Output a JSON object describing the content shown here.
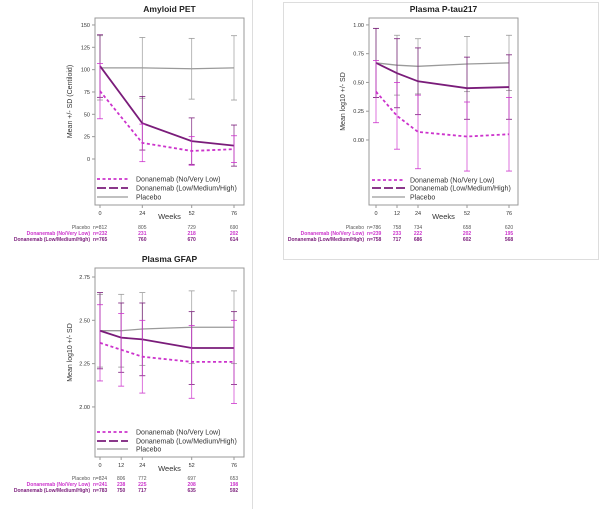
{
  "colors": {
    "placebo": "#9a9a9a",
    "no_very_low": "#cc33cc",
    "low_medium_high": "#7a1c7a",
    "frame": "#999999",
    "text": "#333333"
  },
  "chart_data": [
    {
      "type": "line",
      "title": "Amyloid PET",
      "xlabel": "Weeks",
      "ylabel": "Mean +/- SD (Centiloid)",
      "x": [
        0,
        24,
        52,
        76
      ],
      "xticks": [
        "0",
        "24",
        "52",
        "76"
      ],
      "yticks": [
        0,
        25,
        50,
        75,
        100,
        125,
        150
      ],
      "ytick_labels": [
        "0",
        "25",
        "50",
        "75",
        "100",
        "125",
        "150"
      ],
      "ylim": [
        -51.5,
        157.8
      ],
      "legend_position": "bottom-inside",
      "series": [
        {
          "name": "Donanemab (No/Very Low)",
          "key": "no_very_low",
          "style": "dotted",
          "values": [
            76,
            18,
            9,
            11
          ],
          "sd": [
            31,
            21,
            16,
            15
          ]
        },
        {
          "name": "Donanemab (Low/Medium/High)",
          "key": "low_medium_high",
          "style": "solid",
          "values": [
            104,
            40,
            20,
            15
          ],
          "sd": [
            35,
            30,
            26,
            23
          ]
        },
        {
          "name": "Placebo",
          "key": "placebo",
          "style": "solid",
          "values": [
            102,
            102,
            101,
            102
          ],
          "sd": [
            36,
            34,
            34,
            36
          ]
        }
      ],
      "n_at_risk": [
        {
          "label": "Placebo",
          "key": "placebo",
          "values": [
            "n=812",
            "805",
            "729",
            "690"
          ]
        },
        {
          "label": "Donanemab (No/Very Low)",
          "key": "no_very_low",
          "values": [
            "n=232",
            "231",
            "218",
            "202"
          ]
        },
        {
          "label": "Donanemab (Low/Medium/High)",
          "key": "low_medium_high",
          "values": [
            "n=765",
            "760",
            "670",
            "614"
          ]
        }
      ]
    },
    {
      "type": "line",
      "title": "Plasma P-tau217",
      "xlabel": "Weeks",
      "ylabel": "Mean log10 +/- SD",
      "x": [
        0,
        12,
        24,
        52,
        76
      ],
      "xticks": [
        "0",
        "12",
        "24",
        "52",
        "76"
      ],
      "yticks": [
        0,
        0.25,
        0.5,
        0.75,
        1.0
      ],
      "ytick_labels": [
        "0.00",
        "0.25",
        "0.50",
        "0.75",
        "1.00"
      ],
      "ylim": [
        -0.565,
        1.06
      ],
      "legend_position": "bottom-inside",
      "series": [
        {
          "name": "Donanemab (No/Very Low)",
          "key": "no_very_low",
          "style": "dotted",
          "values": [
            0.42,
            0.21,
            0.07,
            0.03,
            0.05
          ],
          "sd": [
            0.27,
            0.29,
            0.32,
            0.3,
            0.32
          ]
        },
        {
          "name": "Donanemab (Low/Medium/High)",
          "key": "low_medium_high",
          "style": "solid",
          "values": [
            0.67,
            0.58,
            0.51,
            0.45,
            0.46
          ],
          "sd": [
            0.3,
            0.3,
            0.29,
            0.27,
            0.28
          ]
        },
        {
          "name": "Placebo",
          "key": "placebo",
          "style": "solid",
          "values": [
            0.67,
            0.65,
            0.64,
            0.66,
            0.67
          ],
          "sd": [
            0.3,
            0.26,
            0.24,
            0.24,
            0.24
          ]
        }
      ],
      "n_at_risk": [
        {
          "label": "Placebo",
          "key": "placebo",
          "values": [
            "n=786",
            "758",
            "734",
            "658",
            "620"
          ]
        },
        {
          "label": "Donanemab (No/Very Low)",
          "key": "no_very_low",
          "values": [
            "n=239",
            "233",
            "222",
            "202",
            "195"
          ]
        },
        {
          "label": "Donanemab (Low/Medium/High)",
          "key": "low_medium_high",
          "values": [
            "n=758",
            "717",
            "686",
            "602",
            "568"
          ]
        }
      ]
    },
    {
      "type": "line",
      "title": "Plasma GFAP",
      "xlabel": "Weeks",
      "ylabel": "Mean log10 +/- SD",
      "x": [
        0,
        12,
        24,
        52,
        76
      ],
      "xticks": [
        "0",
        "12",
        "24",
        "52",
        "76"
      ],
      "yticks": [
        2.0,
        2.25,
        2.5,
        2.75
      ],
      "ytick_labels": [
        "2.00",
        "2.25",
        "2.50",
        "2.75"
      ],
      "ylim": [
        1.711,
        2.802
      ],
      "legend_position": "bottom-inside",
      "series": [
        {
          "name": "Donanemab (No/Very Low)",
          "key": "no_very_low",
          "style": "dotted",
          "values": [
            2.37,
            2.33,
            2.29,
            2.26,
            2.26
          ],
          "sd": [
            0.22,
            0.21,
            0.21,
            0.21,
            0.24
          ]
        },
        {
          "name": "Donanemab (Low/Medium/High)",
          "key": "low_medium_high",
          "style": "solid",
          "values": [
            2.44,
            2.4,
            2.39,
            2.34,
            2.34
          ],
          "sd": [
            0.22,
            0.2,
            0.21,
            0.21,
            0.21
          ]
        },
        {
          "name": "Placebo",
          "key": "placebo",
          "style": "solid",
          "values": [
            2.44,
            2.44,
            2.45,
            2.46,
            2.46
          ],
          "sd": [
            0.21,
            0.21,
            0.21,
            0.21,
            0.21
          ]
        }
      ],
      "n_at_risk": [
        {
          "label": "Placebo",
          "key": "placebo",
          "values": [
            "n=824",
            "806",
            "772",
            "697",
            "653"
          ]
        },
        {
          "label": "Donanemab (No/Very Low)",
          "key": "no_very_low",
          "values": [
            "n=241",
            "238",
            "225",
            "208",
            "198"
          ]
        },
        {
          "label": "Donanemab (Low/Medium/High)",
          "key": "low_medium_high",
          "values": [
            "n=783",
            "750",
            "717",
            "635",
            "592"
          ]
        }
      ]
    }
  ]
}
